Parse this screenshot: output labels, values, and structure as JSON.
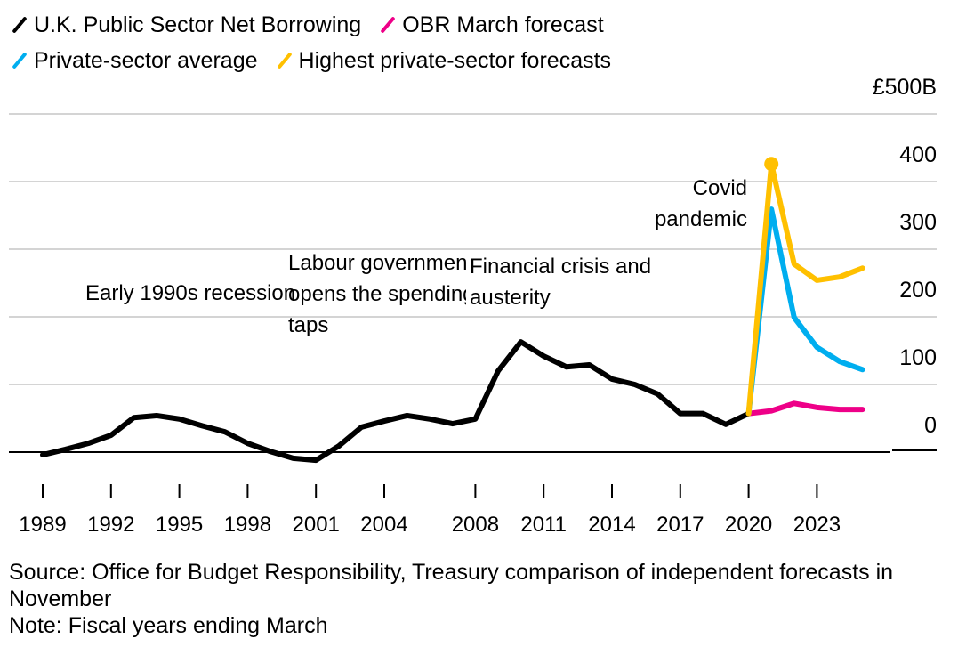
{
  "chart_data": {
    "type": "line",
    "legend": [
      {
        "name": "U.K. Public Sector Net Borrowing",
        "color": "#000000"
      },
      {
        "name": "OBR March forecast",
        "color": "#ee0088"
      },
      {
        "name": "Private-sector average",
        "color": "#00aeef"
      },
      {
        "name": "Highest private-sector forecasts",
        "color": "#ffc000"
      }
    ],
    "legend_position": "top-left",
    "y_axis": {
      "position": "right",
      "range": [
        -20,
        500
      ],
      "ticks": [
        0,
        100,
        200,
        300,
        400,
        500
      ],
      "tick_labels": [
        "0",
        "100",
        "200",
        "300",
        "400",
        "£500B"
      ],
      "grid": true
    },
    "x_axis": {
      "tick_labels": [
        "1989",
        "1992",
        "1995",
        "1998",
        "2001",
        "2004",
        "2008",
        "2011",
        "2014",
        "2017",
        "2020",
        "2023"
      ],
      "ticks": [
        1989,
        1992,
        1995,
        1998,
        2001,
        2004,
        2008,
        2011,
        2014,
        2017,
        2020,
        2023
      ]
    },
    "series": [
      {
        "name": "U.K. Public Sector Net Borrowing",
        "color": "#000000",
        "x": [
          1989,
          1990,
          1991,
          1992,
          1993,
          1994,
          1995,
          1996,
          1997,
          1998,
          1999,
          2000,
          2001,
          2002,
          2003,
          2004,
          2005,
          2006,
          2007,
          2008,
          2009,
          2010,
          2011,
          2012,
          2013,
          2014,
          2015,
          2016,
          2017,
          2018,
          2019,
          2020
        ],
        "values": [
          -4,
          4,
          13,
          25,
          51,
          54,
          49,
          39,
          30,
          13,
          1,
          -9,
          -12,
          9,
          37,
          46,
          54,
          49,
          42,
          49,
          120,
          163,
          142,
          126,
          129,
          108,
          100,
          86,
          57,
          57,
          41,
          57
        ]
      },
      {
        "name": "OBR March forecast",
        "color": "#ee0088",
        "x": [
          2020,
          2021,
          2022,
          2023,
          2024,
          2025
        ],
        "values": [
          57,
          61,
          72,
          66,
          63,
          63
        ]
      },
      {
        "name": "Private-sector average",
        "color": "#00aeef",
        "x": [
          2020,
          2021,
          2022,
          2023,
          2024,
          2025
        ],
        "values": [
          57,
          359,
          199,
          155,
          134,
          122
        ]
      },
      {
        "name": "Highest private-sector forecasts",
        "color": "#ffc000",
        "x": [
          2020,
          2021,
          2022,
          2023,
          2024,
          2025
        ],
        "values": [
          57,
          426,
          278,
          254,
          259,
          272
        ],
        "marker_at": 2021
      }
    ],
    "annotations": [
      {
        "text": "Early 1990s recession"
      },
      {
        "text": "Labour government opens the spending taps"
      },
      {
        "text": "Financial crisis and austerity"
      },
      {
        "text": "Covid pandemic"
      }
    ]
  },
  "source": "Source: Office for Budget Responsibility, Treasury comparison of independent forecasts in November",
  "note": "Note: Fiscal years ending March"
}
